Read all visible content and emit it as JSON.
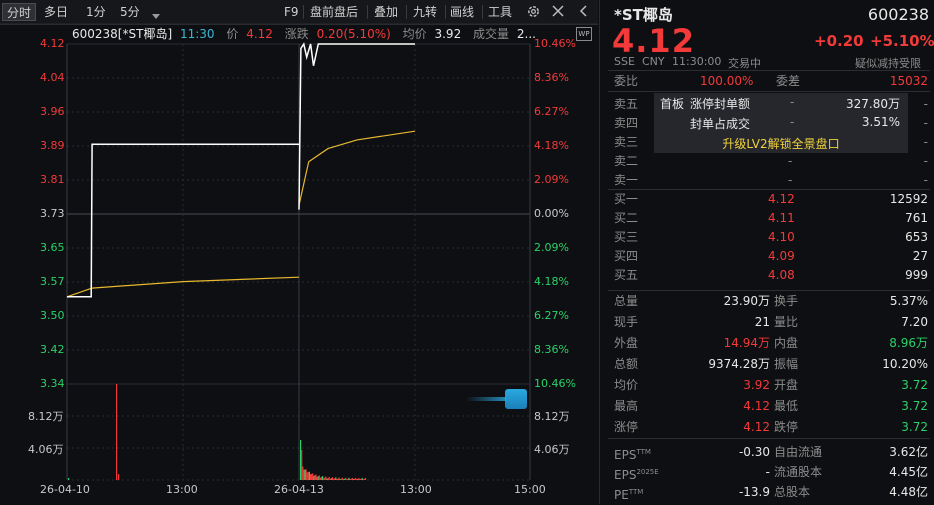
{
  "toolbar": {
    "tabs": [
      "分时",
      "多日",
      "1分",
      "5分"
    ],
    "dropdown_icon": "chevron-down-icon",
    "right_items": [
      "F9",
      "盘前盘后",
      "叠加",
      "九转",
      "画线",
      "工具"
    ],
    "settings_icon": "gear-icon",
    "close_icon": "close-icon",
    "more_icon": "chevron-left-icon"
  },
  "chart_header": {
    "code_name": "600238[*ST椰岛]",
    "time": "11:30",
    "price_label": "价",
    "price": "4.12",
    "change_label": "涨跌",
    "change": "0.20(5.10%)",
    "avg_label": "均价",
    "avg": "3.92",
    "volume_label": "成交量",
    "volume": "2..."
  },
  "chart_data": {
    "type": "line",
    "series": [
      {
        "points": [
          [
            "09:30",
            3.54
          ],
          [
            "09:55",
            3.54
          ],
          [
            "09:56",
            3.89
          ],
          [
            "10:30",
            3.89
          ],
          [
            "11:00",
            3.89
          ],
          [
            "11:30",
            3.89
          ],
          [
            "13:00",
            3.89
          ],
          [
            "14:00",
            3.89
          ],
          [
            "15:00",
            3.89
          ],
          [
            "09:30",
            3.74
          ],
          [
            "09:32",
            4.11
          ],
          [
            "09:35",
            4.12
          ],
          [
            "09:38",
            4.09
          ],
          [
            "09:42",
            4.12
          ],
          [
            "09:45",
            4.07
          ],
          [
            "09:50",
            4.12
          ],
          [
            "10:00",
            4.12
          ],
          [
            "11:30",
            4.12
          ]
        ]
      },
      {
        "points": [
          [
            "09:30",
            3.54
          ],
          [
            "09:56",
            3.56
          ],
          [
            "11:30",
            3.575
          ],
          [
            "15:00",
            3.585
          ],
          [
            "09:30",
            3.75
          ],
          [
            "09:40",
            3.85
          ],
          [
            "10:00",
            3.88
          ],
          [
            "10:30",
            3.9
          ],
          [
            "11:30",
            3.92
          ]
        ]
      }
    ],
    "y_left_ticks": [
      "4.12",
      "4.04",
      "3.96",
      "3.89",
      "3.81",
      "3.73",
      "3.65",
      "3.57",
      "3.50",
      "3.42",
      "3.34"
    ],
    "y_right_ticks": [
      "10.46%",
      "8.36%",
      "6.27%",
      "4.18%",
      "2.09%",
      "0.00%",
      "2.09%",
      "4.18%",
      "6.27%",
      "8.36%",
      "10.46%"
    ],
    "volume_ticks": [
      "8.12万",
      "4.06万"
    ],
    "x_ticks": [
      "26-04-10",
      "13:00",
      "26-04-13",
      "13:00",
      "15:00"
    ],
    "ylim": [
      3.34,
      4.12
    ],
    "prev_close": 3.73
  },
  "quote": {
    "name": "*ST椰岛",
    "code": "600238",
    "price": "4.12",
    "change": "+0.20",
    "change_pct": "+5.10%",
    "exchange": "SSE",
    "currency": "CNY",
    "time": "11:30:00",
    "status": "交易中",
    "note": "疑似减持受限"
  },
  "order_ratio": {
    "label": "委比",
    "value": "100.00%",
    "diff_label": "委差",
    "diff": "15032"
  },
  "asks": [
    {
      "label": "卖五",
      "price": "-",
      "vol": "-"
    },
    {
      "label": "卖四",
      "price": "-",
      "vol": "-"
    },
    {
      "label": "卖三",
      "price": "-",
      "vol": "-"
    },
    {
      "label": "卖二",
      "price": "-",
      "vol": "-"
    },
    {
      "label": "卖一",
      "price": "-",
      "vol": "-"
    }
  ],
  "limit_popup": {
    "board": "首板",
    "order_label": "涨停封单额",
    "order_dash": "-",
    "order_value": "327.80万",
    "share_label": "封单占成交",
    "share_dash": "-",
    "share_value": "3.51%",
    "upgrade": "升级LV2解锁全景盘口"
  },
  "bids": [
    {
      "label": "买一",
      "price": "4.12",
      "vol": "12592"
    },
    {
      "label": "买二",
      "price": "4.11",
      "vol": "761"
    },
    {
      "label": "买三",
      "price": "4.10",
      "vol": "653"
    },
    {
      "label": "买四",
      "price": "4.09",
      "vol": "27"
    },
    {
      "label": "买五",
      "price": "4.08",
      "vol": "999"
    }
  ],
  "stats": [
    {
      "l1": "总量",
      "v1": "23.90万",
      "c1": "white",
      "l2": "换手",
      "v2": "5.37%",
      "c2": "white"
    },
    {
      "l1": "现手",
      "v1": "21",
      "c1": "white",
      "l2": "量比",
      "v2": "7.20",
      "c2": "white"
    },
    {
      "l1": "外盘",
      "v1": "14.94万",
      "c1": "red",
      "l2": "内盘",
      "v2": "8.96万",
      "c2": "green"
    },
    {
      "l1": "总额",
      "v1": "9374.28万",
      "c1": "white",
      "l2": "振幅",
      "v2": "10.20%",
      "c2": "white"
    },
    {
      "l1": "均价",
      "v1": "3.92",
      "c1": "red",
      "l2": "开盘",
      "v2": "3.72",
      "c2": "green"
    },
    {
      "l1": "最高",
      "v1": "4.12",
      "c1": "red",
      "l2": "最低",
      "v2": "3.72",
      "c2": "green"
    },
    {
      "l1": "涨停",
      "v1": "4.12",
      "c1": "red",
      "l2": "跌停",
      "v2": "3.72",
      "c2": "green"
    }
  ],
  "fundamentals": [
    {
      "l1": "EPS",
      "sup1": "TTM",
      "v1": "-0.30",
      "l2": "自由流通",
      "v2": "3.62亿"
    },
    {
      "l1": "EPS",
      "sup1": "2025E",
      "v1": "-",
      "l2": "流通股本",
      "v2": "4.45亿"
    },
    {
      "l1": "PE",
      "sup1": "TTM",
      "v1": "-13.9",
      "l2": "总股本",
      "v2": "4.48亿"
    }
  ],
  "colors": {
    "up": "#f23a3a",
    "down": "#2bd16a",
    "price_line": "#ffffff",
    "avg_line": "#e8b830"
  }
}
